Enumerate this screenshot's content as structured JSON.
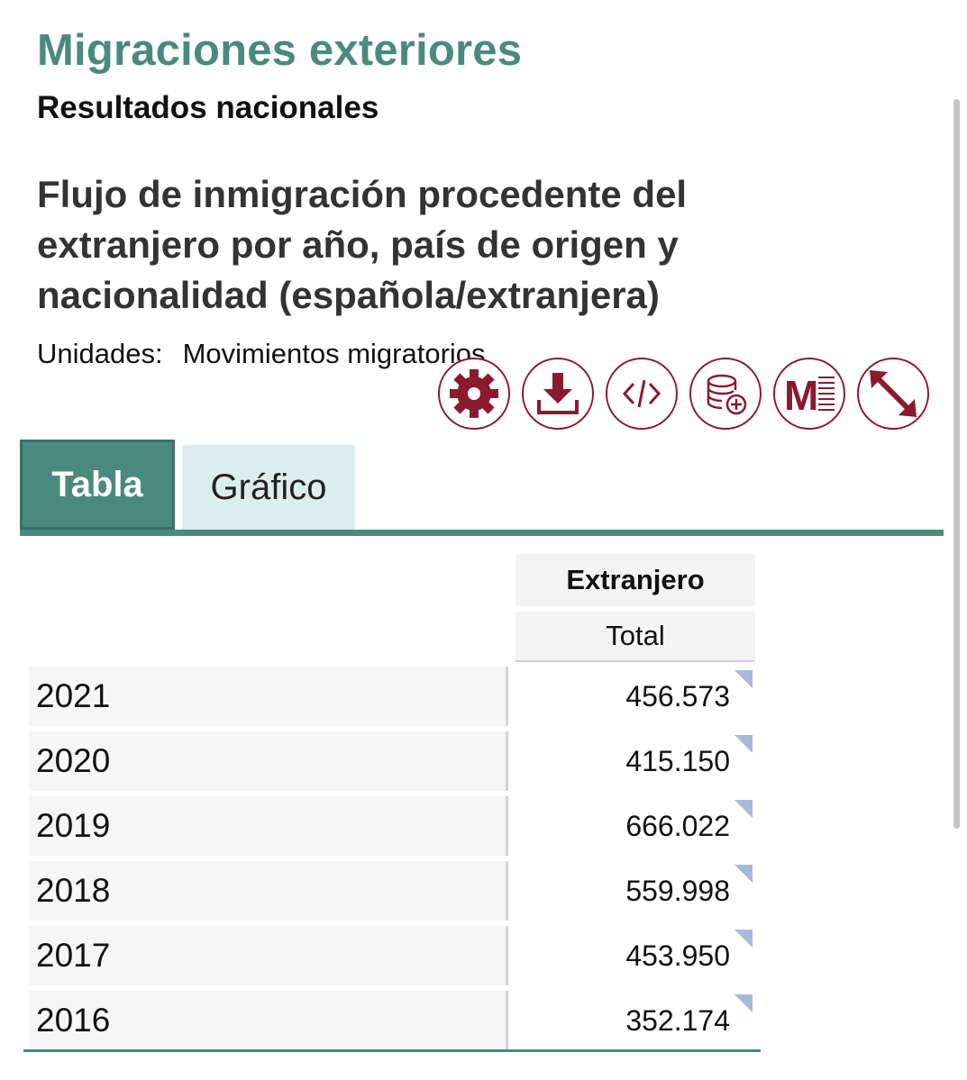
{
  "header": {
    "site_title": "Migraciones exteriores",
    "subtitle": "Resultados nacionales"
  },
  "table_title": "Flujo de inmigración procedente del extranjero por año, país de origen y nacionalidad (española/extranjera)",
  "units": {
    "label": "Unidades:",
    "value": "Movimientos migratorios"
  },
  "toolbar": {
    "accent": "#8a1a2e",
    "buttons": [
      {
        "icon": "gear-icon"
      },
      {
        "icon": "download-icon"
      },
      {
        "icon": "code-icon"
      },
      {
        "icon": "database-add-icon"
      },
      {
        "icon": "metadata-icon",
        "glyph": "M"
      },
      {
        "icon": "expand-icon"
      }
    ]
  },
  "tabs": [
    {
      "label": "Tabla",
      "active": true
    },
    {
      "label": "Gráfico",
      "active": false
    }
  ],
  "colors": {
    "brand": "#4a8a7e",
    "inactive_tab": "#dbeeed"
  },
  "table": {
    "column_group": "Extranjero",
    "column_sub": "Total",
    "rows": [
      {
        "year": "2021",
        "value": "456.573"
      },
      {
        "year": "2020",
        "value": "415.150"
      },
      {
        "year": "2019",
        "value": "666.022"
      },
      {
        "year": "2018",
        "value": "559.998"
      },
      {
        "year": "2017",
        "value": "453.950"
      },
      {
        "year": "2016",
        "value": "352.174"
      }
    ]
  }
}
